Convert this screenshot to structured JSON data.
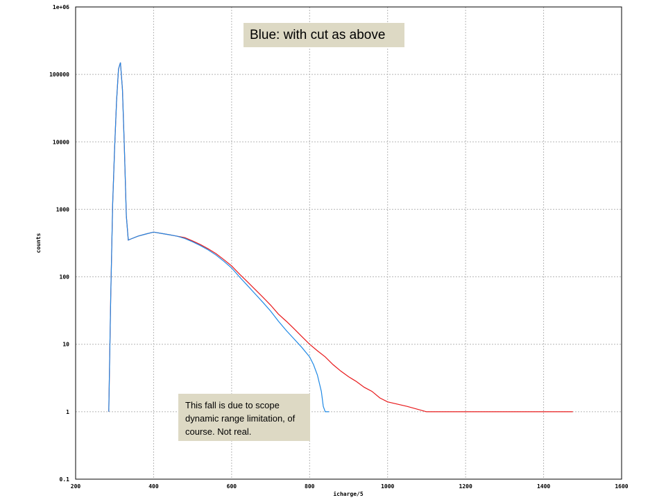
{
  "chart_data": {
    "type": "line",
    "xlabel": "icharge/5",
    "ylabel": "counts",
    "xlim": [
      200,
      1600
    ],
    "ylim": [
      0.1,
      1000000
    ],
    "yscale": "log",
    "grid": true,
    "x_ticks": [
      "200",
      "400",
      "600",
      "800",
      "1000",
      "1200",
      "1400",
      "1600"
    ],
    "y_ticks": [
      "0.1",
      "1",
      "10",
      "100",
      "1000",
      "10000",
      "100000",
      "1e+06"
    ],
    "series": [
      {
        "color": "#e8181a",
        "x": [
          285,
          290,
          295,
          300,
          305,
          310,
          315,
          320,
          325,
          330,
          335,
          340,
          360,
          380,
          400,
          420,
          440,
          460,
          480,
          500,
          520,
          540,
          560,
          580,
          600,
          620,
          640,
          660,
          680,
          700,
          720,
          740,
          760,
          780,
          800,
          820,
          840,
          860,
          880,
          900,
          920,
          940,
          960,
          980,
          1000,
          1050,
          1100,
          1150,
          1200,
          1250,
          1300,
          1350,
          1400,
          1450,
          1475
        ],
        "y": [
          1,
          50,
          1200,
          8000,
          40000,
          120000,
          150000,
          60000,
          8000,
          800,
          350,
          360,
          400,
          430,
          460,
          440,
          420,
          400,
          380,
          340,
          300,
          260,
          220,
          180,
          145,
          110,
          85,
          65,
          50,
          38,
          28,
          22,
          17,
          13,
          10,
          8,
          6.5,
          5,
          4,
          3.3,
          2.8,
          2.3,
          2,
          1.6,
          1.4,
          1.2,
          1,
          1,
          1,
          1,
          1,
          1,
          1,
          1,
          1
        ]
      },
      {
        "color": "#1e88e5",
        "x": [
          285,
          290,
          295,
          300,
          305,
          310,
          315,
          320,
          325,
          330,
          335,
          340,
          360,
          380,
          400,
          420,
          440,
          460,
          480,
          500,
          520,
          540,
          560,
          580,
          600,
          620,
          640,
          660,
          680,
          700,
          720,
          740,
          760,
          780,
          800,
          810,
          820,
          830,
          835,
          840,
          845,
          850
        ],
        "y": [
          1,
          50,
          1200,
          8000,
          40000,
          120000,
          150000,
          60000,
          8000,
          800,
          350,
          360,
          400,
          430,
          460,
          440,
          420,
          400,
          370,
          330,
          290,
          250,
          210,
          170,
          135,
          100,
          75,
          56,
          42,
          31,
          22,
          16,
          12,
          9,
          6.5,
          5,
          3.5,
          2,
          1.2,
          1,
          1,
          1
        ]
      }
    ]
  },
  "annotations": {
    "top": "Blue: with cut as above",
    "bottom": "This fall is due to scope dynamic range limitation, of course. Not real."
  }
}
